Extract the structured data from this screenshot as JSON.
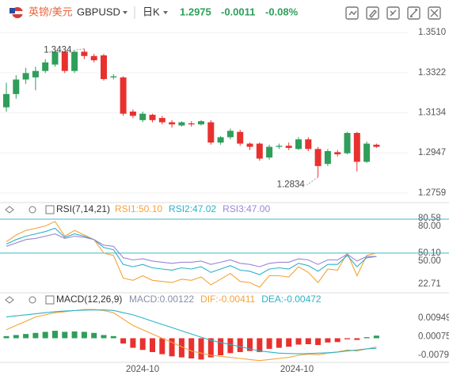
{
  "header": {
    "name": "英镑/美元",
    "symbol": "GBPUSD",
    "period": "日K",
    "price": "1.2975",
    "change": "-0.0011",
    "change_pct": "-0.08%"
  },
  "x_axis_labels": [
    "2024-10",
    "2024-10"
  ],
  "chart_data": [
    {
      "type": "candlestick",
      "up_color": "#2e9e5a",
      "down_color": "#e8312f",
      "ylim": [
        1.2718,
        1.3551
      ],
      "yticks": [
        {
          "value": 1.351,
          "label": "1.3510"
        },
        1.3322,
        1.3134,
        1.2947,
        1.2759
      ],
      "open": [
        1.316,
        1.3222,
        1.329,
        1.33,
        1.333,
        1.336,
        1.342,
        1.333,
        1.342,
        1.34,
        1.3403,
        1.33,
        1.33,
        1.314,
        1.31,
        1.3125,
        1.311,
        1.309,
        1.3075,
        1.3085,
        1.308,
        1.309,
        1.2995,
        1.302,
        1.3045,
        1.299,
        1.299,
        1.2925,
        1.2975,
        1.298,
        1.2965,
        1.301,
        1.2965,
        1.2895,
        1.295,
        1.2945,
        1.304,
        1.2905,
        1.2985
      ],
      "high": [
        1.3275,
        1.331,
        1.3345,
        1.335,
        1.3385,
        1.3425,
        1.3425,
        1.3425,
        1.3434,
        1.341,
        1.341,
        1.3315,
        1.3305,
        1.315,
        1.314,
        1.313,
        1.312,
        1.31,
        1.3095,
        1.3095,
        1.31,
        1.31,
        1.3025,
        1.306,
        1.3055,
        1.2995,
        1.2995,
        1.2985,
        1.299,
        1.2995,
        1.302,
        1.302,
        1.2975,
        1.2965,
        1.296,
        1.3045,
        1.3045,
        1.3,
        1.299
      ],
      "low": [
        1.314,
        1.32,
        1.327,
        1.324,
        1.332,
        1.335,
        1.332,
        1.332,
        1.3385,
        1.337,
        1.3285,
        1.329,
        1.312,
        1.311,
        1.309,
        1.309,
        1.308,
        1.3065,
        1.307,
        1.307,
        1.3075,
        1.2985,
        1.2985,
        1.301,
        1.298,
        1.296,
        1.291,
        1.2915,
        1.2965,
        1.296,
        1.296,
        1.2955,
        1.2834,
        1.2885,
        1.293,
        1.294,
        1.286,
        1.29,
        1.297
      ],
      "close": [
        1.3222,
        1.329,
        1.332,
        1.333,
        1.337,
        1.342,
        1.333,
        1.342,
        1.34,
        1.338,
        1.3292,
        1.3305,
        1.313,
        1.312,
        1.313,
        1.31,
        1.309,
        1.308,
        1.309,
        1.308,
        1.3095,
        1.2995,
        1.302,
        1.305,
        1.299,
        1.2975,
        1.292,
        1.2975,
        1.298,
        1.297,
        1.301,
        1.2965,
        1.2885,
        1.2955,
        1.294,
        1.304,
        1.2905,
        1.299,
        1.2975
      ],
      "annotations": [
        {
          "label": "1.3434",
          "value": 1.3434,
          "kind": "high"
        },
        {
          "label": "1.2834",
          "value": 1.2834,
          "kind": "low"
        }
      ]
    },
    {
      "type": "line",
      "title": "RSI(7,14,21)",
      "ylim": [
        18.5,
        83.5
      ],
      "yticks": [
        {
          "value": 80,
          "label": "80.00"
        },
        80.58,
        {
          "value": 50,
          "label": "50.00"
        },
        {
          "value": 50.1,
          "label": "50.10"
        },
        22.71
      ],
      "levels": [
        80,
        50
      ],
      "level_color": "#3fb6c9",
      "series": [
        {
          "name": "RSI1:50.10",
          "color": "#f5a33a",
          "values": [
            60,
            66,
            70,
            72,
            74,
            78,
            65,
            70,
            66,
            62,
            50,
            48,
            28,
            26,
            30,
            26,
            25,
            24,
            27,
            26,
            29,
            22,
            27,
            32,
            25,
            24,
            20,
            30,
            30,
            29,
            38,
            33,
            24,
            36,
            35,
            50,
            30,
            48,
            50.1
          ]
        },
        {
          "name": "RSI2:47.02",
          "color": "#2bb3c8",
          "values": [
            58,
            62,
            65,
            67,
            69,
            72,
            64,
            67,
            65,
            62,
            55,
            53,
            40,
            38,
            40,
            37,
            36,
            35,
            37,
            36,
            38,
            33,
            36,
            39,
            35,
            34,
            31,
            36,
            37,
            36,
            41,
            39,
            34,
            40,
            40,
            48,
            38,
            46,
            47.02
          ]
        },
        {
          "name": "RSI3:47.00",
          "color": "#9b84d6",
          "values": [
            56,
            59,
            62,
            63,
            65,
            67,
            63,
            65,
            64,
            62,
            57,
            56,
            46,
            44,
            45,
            43,
            42,
            41,
            42,
            42,
            43,
            40,
            42,
            44,
            41,
            40,
            38,
            41,
            42,
            42,
            45,
            44,
            40,
            44,
            44,
            49,
            43,
            47,
            47.0
          ]
        }
      ]
    },
    {
      "type": "macd",
      "title": "MACD(12,26,9)",
      "ylim": [
        -0.0121,
        0.0158
      ],
      "yticks": [
        0.00949,
        0.00075,
        -0.00798
      ],
      "up_color": "#2e9e5a",
      "down_color": "#e8312f",
      "histogram": {
        "name": "MACD:0.00122",
        "color": "#8a8fa8",
        "values": [
          0.001,
          0.0015,
          0.002,
          0.0025,
          0.003,
          0.0035,
          0.003,
          0.0032,
          0.003,
          0.0025,
          0.0015,
          0.001,
          -0.0025,
          -0.0045,
          -0.0055,
          -0.0065,
          -0.0075,
          -0.0085,
          -0.009,
          -0.0095,
          -0.01,
          -0.009,
          -0.008,
          -0.007,
          -0.0065,
          -0.006,
          -0.0065,
          -0.005,
          -0.0045,
          -0.004,
          -0.003,
          -0.0028,
          -0.0032,
          -0.002,
          -0.0018,
          -0.0005,
          -0.0008,
          0.0005,
          0.00122
        ]
      },
      "series": [
        {
          "name": "DIF:-0.00411",
          "color": "#f5a33a",
          "values": [
            0.004,
            0.006,
            0.008,
            0.01,
            0.011,
            0.012,
            0.0125,
            0.013,
            0.0135,
            0.0135,
            0.013,
            0.012,
            0.009,
            0.006,
            0.004,
            0.002,
            0.0,
            -0.002,
            -0.004,
            -0.006,
            -0.007,
            -0.008,
            -0.0085,
            -0.009,
            -0.0095,
            -0.01,
            -0.0105,
            -0.01,
            -0.0095,
            -0.009,
            -0.008,
            -0.0075,
            -0.0078,
            -0.007,
            -0.0065,
            -0.0055,
            -0.006,
            -0.005,
            -0.00411
          ]
        },
        {
          "name": "DEA:-0.00472",
          "color": "#2bb3c8",
          "values": [
            0.01,
            0.0105,
            0.011,
            0.0115,
            0.012,
            0.0125,
            0.0128,
            0.013,
            0.0132,
            0.0133,
            0.0133,
            0.0131,
            0.012,
            0.011,
            0.0095,
            0.008,
            0.0065,
            0.005,
            0.0035,
            0.002,
            0.0005,
            -0.001,
            -0.002,
            -0.003,
            -0.004,
            -0.005,
            -0.006,
            -0.0065,
            -0.007,
            -0.0072,
            -0.0073,
            -0.0072,
            -0.007,
            -0.0068,
            -0.0065,
            -0.006,
            -0.0055,
            -0.005,
            -0.00472
          ]
        }
      ]
    }
  ]
}
